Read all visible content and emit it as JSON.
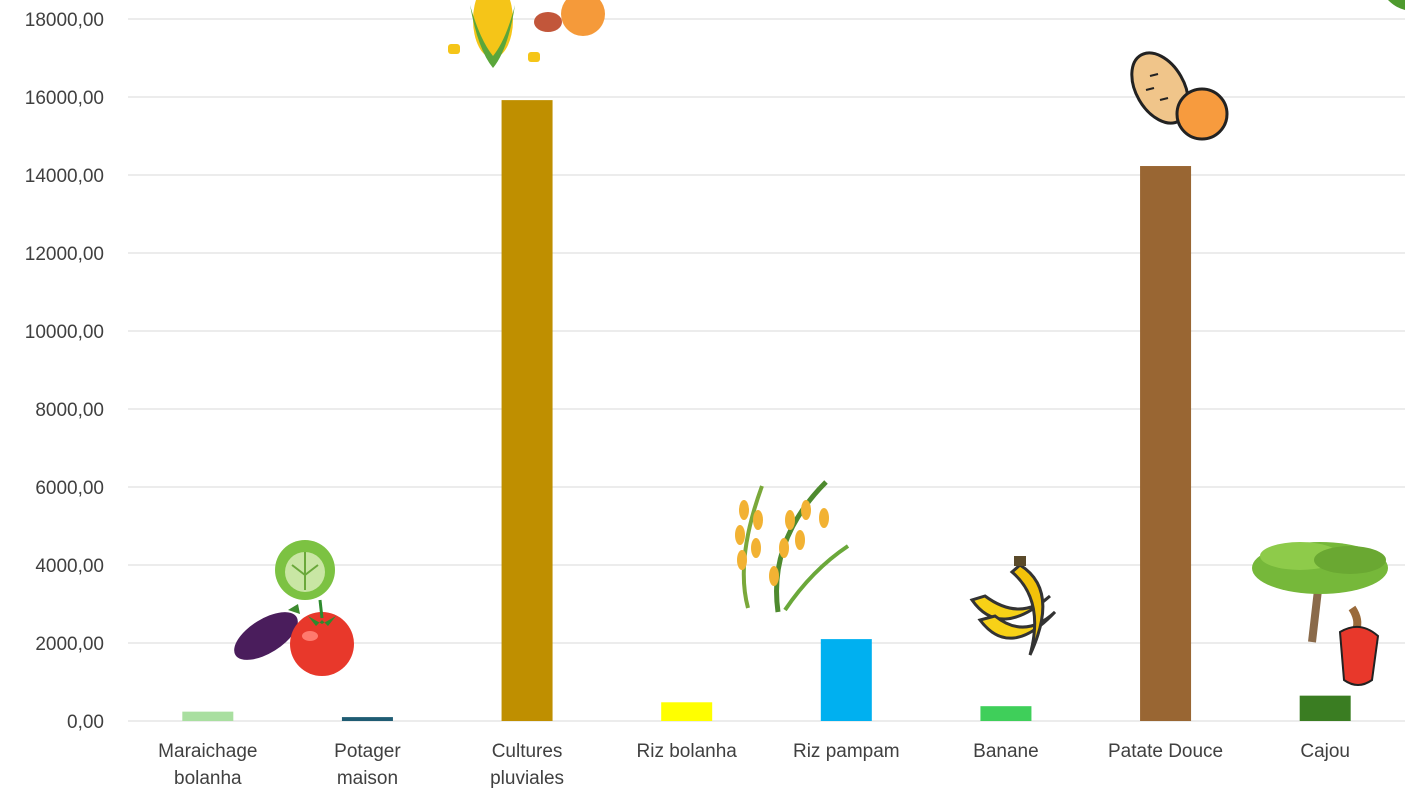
{
  "chart_data": {
    "type": "bar",
    "title": "",
    "xlabel": "",
    "ylabel": "",
    "categories": [
      [
        "Maraichage",
        "bolanha"
      ],
      [
        "Potager",
        "maison"
      ],
      [
        "Cultures",
        "pluviales"
      ],
      [
        "Riz bolanha"
      ],
      [
        "Riz pampam"
      ],
      [
        "Banane"
      ],
      [
        "Patate Douce"
      ],
      [
        "Cajou"
      ]
    ],
    "values": [
      240,
      100,
      15920,
      480,
      2100,
      380,
      14230,
      650
    ],
    "bar_colors": [
      "#a9dfa0",
      "#1f5c73",
      "#bf8f00",
      "#ffff00",
      "#00b0f0",
      "#3fcf5a",
      "#996633",
      "#3a7d22"
    ],
    "ylim": [
      0,
      18000
    ],
    "yticks": [
      "0,00",
      "2000,00",
      "4000,00",
      "6000,00",
      "8000,00",
      "10000,00",
      "12000,00",
      "14000,00",
      "16000,00",
      "18000,00"
    ],
    "grid": true,
    "legend": "none"
  },
  "icons": {
    "maraichage": [
      "cabbage-icon",
      "eggplant-icon",
      "tomato-icon"
    ],
    "cultures": "corn-vegetables-icon",
    "riz": "rice-stalk-icon",
    "banane": "banana-icon",
    "patate": "sweet-potato-icon",
    "cajou": [
      "tree-icon",
      "cashew-apple-icon"
    ],
    "corner": "leaf-icon"
  }
}
